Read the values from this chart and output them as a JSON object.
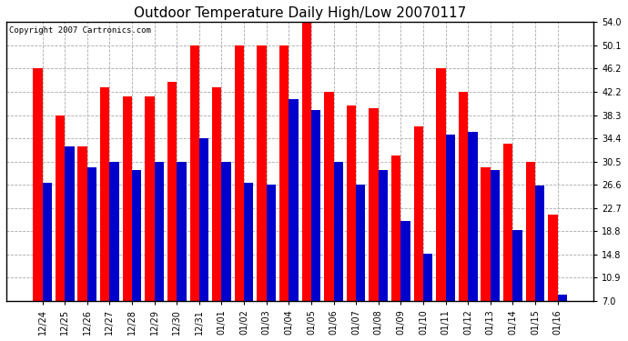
{
  "title": "Outdoor Temperature Daily High/Low 20070117",
  "copyright_text": "Copyright 2007 Cartronics.com",
  "categories": [
    "12/24",
    "12/25",
    "12/26",
    "12/27",
    "12/28",
    "12/29",
    "12/30",
    "12/31",
    "01/01",
    "01/02",
    "01/03",
    "01/04",
    "01/05",
    "01/06",
    "01/07",
    "01/08",
    "01/09",
    "01/10",
    "01/11",
    "01/12",
    "01/13",
    "01/14",
    "01/15",
    "01/16"
  ],
  "highs": [
    46.2,
    38.3,
    33.0,
    43.0,
    41.5,
    41.5,
    44.0,
    50.1,
    43.0,
    50.1,
    50.1,
    50.1,
    54.0,
    42.2,
    40.0,
    39.5,
    31.5,
    36.5,
    46.2,
    42.2,
    29.5,
    33.5,
    30.5,
    21.5
  ],
  "lows": [
    27.0,
    33.0,
    29.5,
    30.5,
    29.0,
    30.5,
    30.5,
    34.4,
    30.5,
    27.0,
    26.6,
    41.0,
    39.2,
    30.5,
    26.6,
    29.0,
    20.5,
    15.0,
    35.0,
    35.5,
    29.0,
    19.0,
    26.5,
    8.0
  ],
  "high_color": "#ff0000",
  "low_color": "#0000cc",
  "bg_color": "#ffffff",
  "plot_bg_color": "#ffffff",
  "grid_color": "#aaaaaa",
  "ylim_min": 7.0,
  "ylim_max": 54.0,
  "yticks": [
    7.0,
    10.9,
    14.8,
    18.8,
    22.7,
    26.6,
    30.5,
    34.4,
    38.3,
    42.2,
    46.2,
    50.1,
    54.0
  ],
  "bar_width": 0.42,
  "title_fontsize": 11,
  "copyright_fontsize": 6.5,
  "tick_fontsize": 7,
  "figsize": [
    6.9,
    3.75
  ],
  "dpi": 100
}
